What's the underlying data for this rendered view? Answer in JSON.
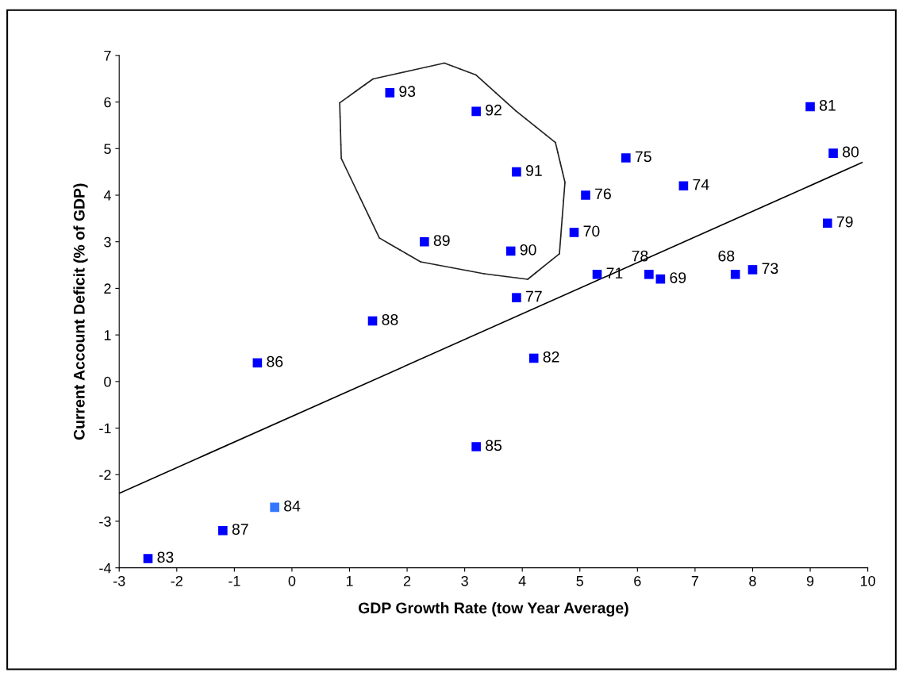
{
  "chart_data": {
    "type": "scatter",
    "xlabel": "GDP Growth Rate (tow Year Average)",
    "ylabel": "Current Account Deficit (% of GDP)",
    "xlim": [
      -3,
      10
    ],
    "xticks": [
      -3,
      -2,
      -1,
      0,
      1,
      2,
      3,
      4,
      5,
      6,
      7,
      8,
      9,
      10
    ],
    "ylim": [
      -4,
      7
    ],
    "yticks": [
      -4,
      -3,
      -2,
      -1,
      0,
      1,
      2,
      3,
      4,
      5,
      6,
      7
    ],
    "grid": false,
    "series": [
      {
        "marker": "square",
        "x": [
          1.7,
          3.2,
          3.9,
          2.3,
          3.8,
          3.9,
          5.8,
          5.1,
          4.9,
          5.3,
          6.2,
          6.4,
          6.8,
          7.7,
          8.0,
          9.0,
          9.4,
          9.3,
          1.4,
          -0.6,
          4.2,
          3.2,
          -0.3,
          -1.2,
          -2.5
        ],
        "values": [
          6.2,
          5.8,
          4.5,
          3.0,
          2.8,
          1.8,
          4.8,
          4.0,
          3.2,
          2.3,
          2.3,
          2.2,
          4.2,
          2.3,
          2.4,
          5.9,
          4.9,
          3.4,
          1.3,
          0.4,
          0.5,
          -1.4,
          -2.7,
          -3.2,
          -3.8
        ],
        "colors": [
          "#0000ff",
          "#0000ff",
          "#0000ff",
          "#0000ff",
          "#0000ff",
          "#0000ff",
          "#0000ff",
          "#0000ff",
          "#0000ff",
          "#0000ff",
          "#0000ff",
          "#0000ff",
          "#0000ff",
          "#0000ff",
          "#0000ff",
          "#0000ff",
          "#0000ff",
          "#0000ff",
          "#0000ff",
          "#0000ff",
          "#0000ff",
          "#0000ff",
          "#3377ff",
          "#0000ff",
          "#0000ff"
        ]
      },
      {
        "type": "line",
        "color": "#000000",
        "x": [
          -3,
          9.9
        ],
        "values": [
          -2.4,
          4.7
        ]
      }
    ],
    "annotations": [
      {
        "text": "93",
        "x": 1.7,
        "y": 6.2
      },
      {
        "text": "92",
        "x": 3.2,
        "y": 5.8
      },
      {
        "text": "91",
        "x": 3.9,
        "y": 4.5
      },
      {
        "text": "89",
        "x": 2.3,
        "y": 3.0
      },
      {
        "text": "90",
        "x": 3.8,
        "y": 2.8
      },
      {
        "text": "77",
        "x": 3.9,
        "y": 1.8
      },
      {
        "text": "75",
        "x": 5.8,
        "y": 4.8
      },
      {
        "text": "76",
        "x": 5.1,
        "y": 4.0
      },
      {
        "text": "70",
        "x": 4.9,
        "y": 3.2
      },
      {
        "text": "71",
        "x": 5.3,
        "y": 2.3
      },
      {
        "text": "78",
        "x": 6.2,
        "y": 2.3
      },
      {
        "text": "69",
        "x": 6.4,
        "y": 2.2
      },
      {
        "text": "74",
        "x": 6.8,
        "y": 4.2
      },
      {
        "text": "68",
        "x": 7.7,
        "y": 2.3
      },
      {
        "text": "73",
        "x": 8.0,
        "y": 2.4
      },
      {
        "text": "81",
        "x": 9.0,
        "y": 5.9
      },
      {
        "text": "80",
        "x": 9.4,
        "y": 4.9
      },
      {
        "text": "79",
        "x": 9.3,
        "y": 3.4
      },
      {
        "text": "88",
        "x": 1.4,
        "y": 1.3
      },
      {
        "text": "86",
        "x": -0.6,
        "y": 0.4
      },
      {
        "text": "82",
        "x": 4.2,
        "y": 0.5
      },
      {
        "text": "85",
        "x": 3.2,
        "y": -1.4
      },
      {
        "text": "84",
        "x": -0.3,
        "y": -2.7
      },
      {
        "text": "87",
        "x": -1.2,
        "y": -3.2
      },
      {
        "text": "83",
        "x": -2.5,
        "y": -3.8
      }
    ]
  }
}
